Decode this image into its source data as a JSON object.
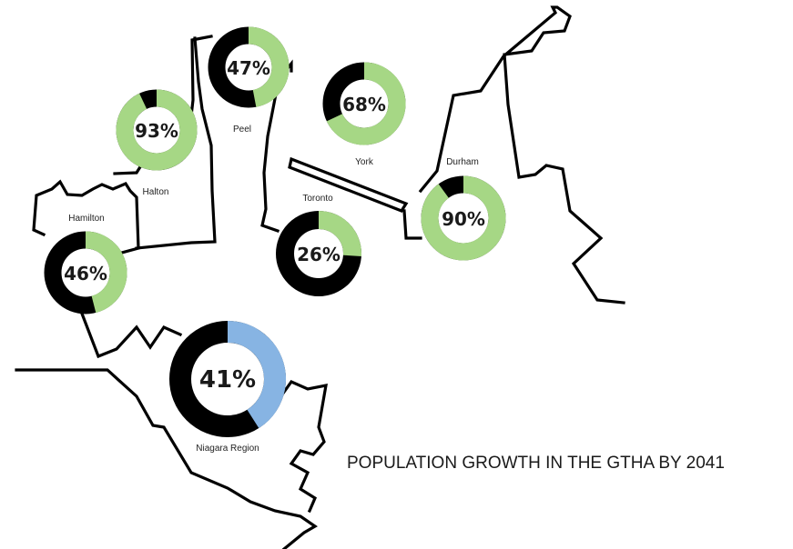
{
  "chart_data": {
    "type": "pie",
    "title": "POPULATION GROWTH IN THE GTHA BY 2041",
    "colors": {
      "filled": "#000000",
      "green": "#a6d785",
      "blue": "#87b4e3"
    },
    "series": [
      {
        "name": "Peel",
        "value": 47,
        "label": "47%",
        "accent": "green"
      },
      {
        "name": "Halton",
        "value": 93,
        "label": "93%",
        "accent": "green"
      },
      {
        "name": "York",
        "value": 68,
        "label": "68%",
        "accent": "green"
      },
      {
        "name": "Durham",
        "value": 90,
        "label": "90%",
        "accent": "green"
      },
      {
        "name": "Toronto",
        "value": 26,
        "label": "26%",
        "accent": "green"
      },
      {
        "name": "Hamilton",
        "value": 46,
        "label": "46%",
        "accent": "green"
      },
      {
        "name": "Niagara Region",
        "value": 41,
        "label": "41%",
        "accent": "blue"
      }
    ]
  }
}
